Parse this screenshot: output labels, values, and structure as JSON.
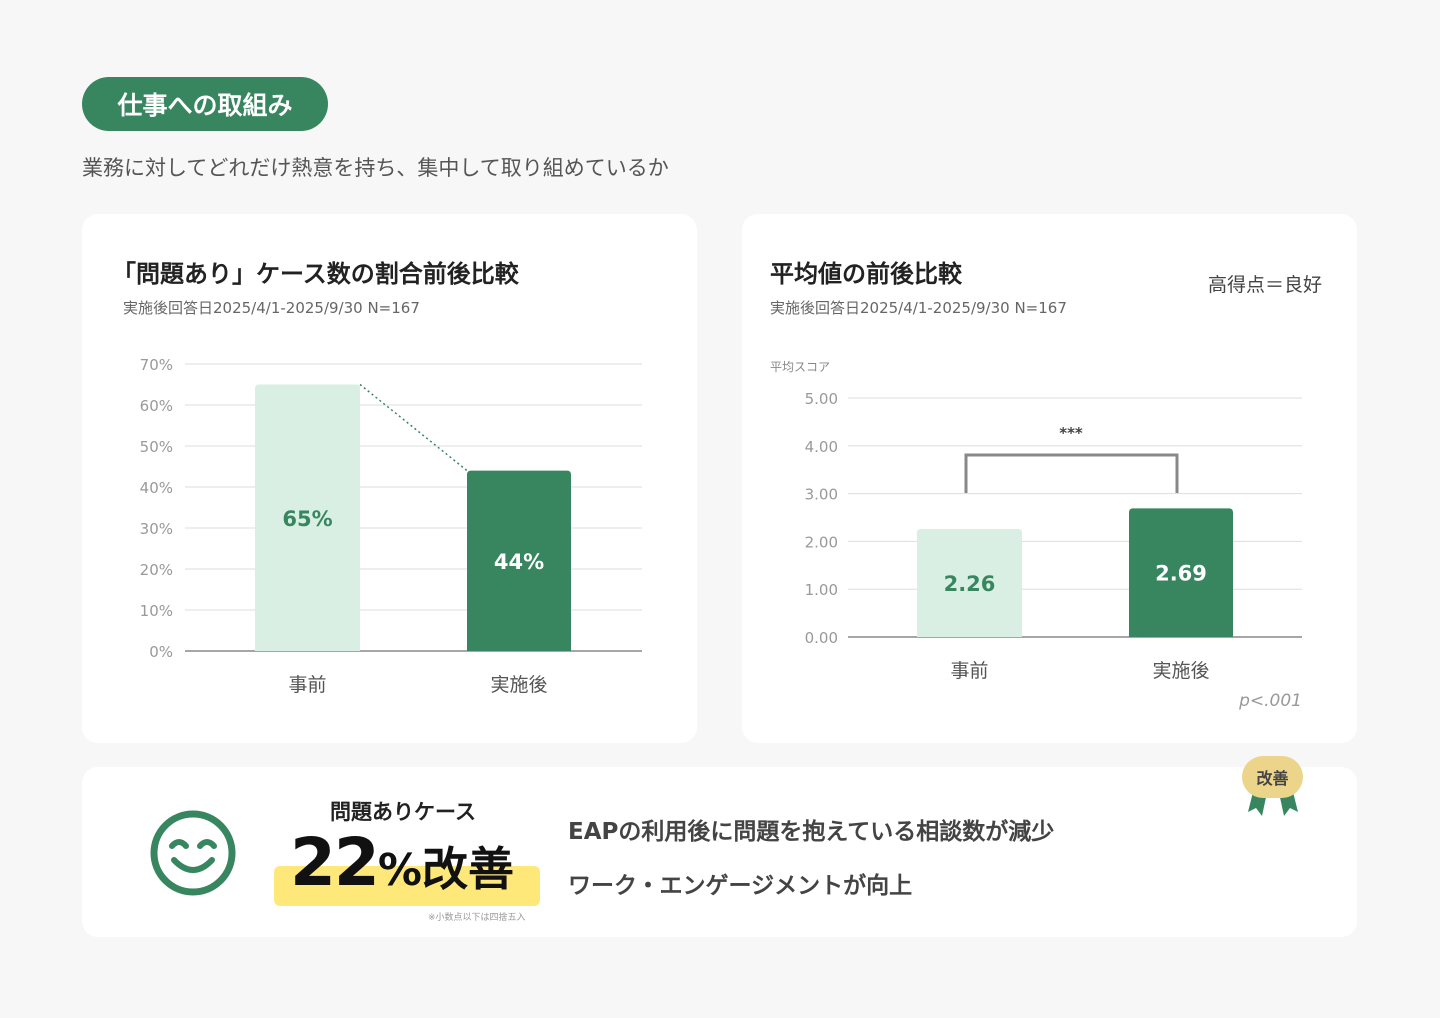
{
  "section": {
    "title": "仕事への取組み",
    "description": "業務に対してどれだけ熱意を持ち、集中して取り組めているか"
  },
  "colors": {
    "accent": "#378660",
    "light": "#d9efe3",
    "highlight": "#ffe87a",
    "badge": "#ecd58b"
  },
  "chart_data": [
    {
      "type": "bar",
      "title": "「問題あり」ケース数の割合前後比較",
      "subtitle": "実施後回答日2025/4/1-2025/9/30 N=167",
      "categories": [
        "事前",
        "実施後"
      ],
      "values": [
        65,
        44
      ],
      "value_labels": [
        "65%",
        "44%"
      ],
      "yticks": [
        "0%",
        "10%",
        "20%",
        "30%",
        "40%",
        "50%",
        "60%",
        "70%"
      ],
      "ylim": [
        0,
        70
      ],
      "grid": true
    },
    {
      "type": "bar",
      "title": "平均値の前後比較",
      "subtitle": "実施後回答日2025/4/1-2025/9/30 N=167",
      "note": "高得点＝良好",
      "ylabel": "平均スコア",
      "categories": [
        "事前",
        "実施後"
      ],
      "values": [
        2.26,
        2.69
      ],
      "value_labels": [
        "2.26",
        "2.69"
      ],
      "yticks": [
        "0.00",
        "1.00",
        "2.00",
        "3.00",
        "4.00",
        "5.00"
      ],
      "ylim": [
        0,
        5
      ],
      "grid": true,
      "significance": "***",
      "pvalue": "p<.001"
    }
  ],
  "summary": {
    "label": "問題ありケース",
    "number": "22",
    "unit": "%",
    "suffix": "改善",
    "footnote": "※小数点以下は四捨五入",
    "messages": [
      "EAPの利用後に問題を抱えている相談数が減少",
      "ワーク・エンゲージメントが向上"
    ],
    "badge": "改善"
  }
}
